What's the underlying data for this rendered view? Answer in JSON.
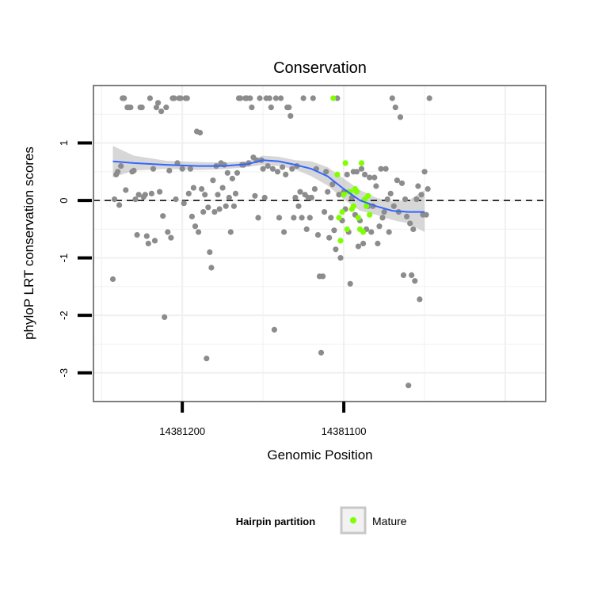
{
  "chart_data": {
    "type": "scatter",
    "title": "Conservation",
    "xlabel": "Genomic Position",
    "ylabel": "phyloP LRT conservation scores",
    "x_reversed": true,
    "xlim": [
      14381255,
      14380975
    ],
    "ylim": [
      -3.5,
      2.0
    ],
    "x_ticks": [
      14381200,
      14381100
    ],
    "x_tick_labels": [
      "14381200",
      "14381100"
    ],
    "y_ticks": [
      -3,
      -2,
      -1,
      0,
      1
    ],
    "y_tick_labels": [
      "-3",
      "-2",
      "-1",
      "0",
      "1"
    ],
    "reference_line": {
      "y": 0,
      "style": "dashed"
    },
    "grid": true,
    "legend": {
      "title": "Hairpin partition",
      "position": "bottom",
      "entries": [
        {
          "label": "Mature",
          "color": "#7fff00"
        }
      ]
    },
    "colors": {
      "points_gray": "#8c8c8c",
      "mature": "#7fff00",
      "smooth": "#3366ff",
      "ribbon": "#bdbdbd",
      "panel_border": "#7f7f7f",
      "grid": "#f0f0f0"
    },
    "series": [
      {
        "name": "",
        "color": "#8c8c8c",
        "points": [
          [
            14381243,
            -1.37
          ],
          [
            14381242,
            0.02
          ],
          [
            14381241,
            0.45
          ],
          [
            14381240,
            0.5
          ],
          [
            14381239,
            -0.08
          ],
          [
            14381238,
            0.6
          ],
          [
            14381237,
            1.78
          ],
          [
            14381236,
            1.78
          ],
          [
            14381235,
            0.18
          ],
          [
            14381234,
            1.62
          ],
          [
            14381233,
            1.62
          ],
          [
            14381232,
            1.62
          ],
          [
            14381231,
            0.5
          ],
          [
            14381230,
            0.52
          ],
          [
            14381229,
            0.02
          ],
          [
            14381228,
            -0.6
          ],
          [
            14381227,
            0.1
          ],
          [
            14381226,
            1.62
          ],
          [
            14381225,
            1.62
          ],
          [
            14381224,
            0.06
          ],
          [
            14381223,
            0.1
          ],
          [
            14381222,
            -0.62
          ],
          [
            14381221,
            -0.75
          ],
          [
            14381220,
            1.78
          ],
          [
            14381219,
            0.12
          ],
          [
            14381218,
            0.55
          ],
          [
            14381217,
            -0.7
          ],
          [
            14381216,
            1.62
          ],
          [
            14381215,
            1.7
          ],
          [
            14381214,
            0.15
          ],
          [
            14381213,
            1.55
          ],
          [
            14381212,
            -0.27
          ],
          [
            14381211,
            -2.03
          ],
          [
            14381210,
            1.62
          ],
          [
            14381209,
            -0.55
          ],
          [
            14381208,
            0.52
          ],
          [
            14381207,
            -0.65
          ],
          [
            14381206,
            1.78
          ],
          [
            14381205,
            1.78
          ],
          [
            14381204,
            0.02
          ],
          [
            14381203,
            0.65
          ],
          [
            14381202,
            1.78
          ],
          [
            14381201,
            1.78
          ],
          [
            14381200,
            0.55
          ],
          [
            14381199,
            -0.05
          ],
          [
            14381198,
            1.78
          ],
          [
            14381197,
            1.78
          ],
          [
            14381196,
            0.12
          ],
          [
            14381195,
            0.55
          ],
          [
            14381194,
            -0.28
          ],
          [
            14381193,
            0.22
          ],
          [
            14381192,
            -0.45
          ],
          [
            14381191,
            1.2
          ],
          [
            14381190,
            -0.55
          ],
          [
            14381189,
            1.18
          ],
          [
            14381188,
            0.2
          ],
          [
            14381187,
            -0.2
          ],
          [
            14381186,
            0.1
          ],
          [
            14381185,
            -2.75
          ],
          [
            14381184,
            -0.12
          ],
          [
            14381183,
            -0.9
          ],
          [
            14381182,
            -1.17
          ],
          [
            14381181,
            0.35
          ],
          [
            14381180,
            -0.2
          ],
          [
            14381179,
            0.6
          ],
          [
            14381178,
            0.1
          ],
          [
            14381177,
            -0.15
          ],
          [
            14381176,
            0.65
          ],
          [
            14381175,
            0.22
          ],
          [
            14381174,
            0.62
          ],
          [
            14381173,
            -0.1
          ],
          [
            14381172,
            0.48
          ],
          [
            14381171,
            0.05
          ],
          [
            14381170,
            -0.55
          ],
          [
            14381169,
            0.38
          ],
          [
            14381168,
            -0.1
          ],
          [
            14381167,
            0.12
          ],
          [
            14381166,
            0.48
          ],
          [
            14381165,
            1.78
          ],
          [
            14381164,
            1.78
          ],
          [
            14381163,
            0.62
          ],
          [
            14381162,
            0.62
          ],
          [
            14381161,
            1.78
          ],
          [
            14381160,
            1.78
          ],
          [
            14381159,
            0.65
          ],
          [
            14381158,
            1.78
          ],
          [
            14381157,
            1.62
          ],
          [
            14381156,
            0.75
          ],
          [
            14381155,
            0.08
          ],
          [
            14381154,
            0.7
          ],
          [
            14381153,
            -0.3
          ],
          [
            14381152,
            1.78
          ],
          [
            14381151,
            0.7
          ],
          [
            14381150,
            0.55
          ],
          [
            14381149,
            0.05
          ],
          [
            14381148,
            1.78
          ],
          [
            14381147,
            0.6
          ],
          [
            14381146,
            1.78
          ],
          [
            14381145,
            1.62
          ],
          [
            14381144,
            0.55
          ],
          [
            14381143,
            -2.25
          ],
          [
            14381142,
            1.78
          ],
          [
            14381141,
            0.5
          ],
          [
            14381140,
            -0.3
          ],
          [
            14381139,
            1.78
          ],
          [
            14381138,
            0.58
          ],
          [
            14381137,
            -0.55
          ],
          [
            14381136,
            0.45
          ],
          [
            14381135,
            1.62
          ],
          [
            14381134,
            1.62
          ],
          [
            14381133,
            1.47
          ],
          [
            14381132,
            0.55
          ],
          [
            14381131,
            -0.3
          ],
          [
            14381130,
            0.05
          ],
          [
            14381129,
            0.6
          ],
          [
            14381128,
            -0.1
          ],
          [
            14381127,
            0.15
          ],
          [
            14381126,
            -0.3
          ],
          [
            14381125,
            1.78
          ],
          [
            14381124,
            0.1
          ],
          [
            14381123,
            -0.5
          ],
          [
            14381122,
            0.05
          ],
          [
            14381121,
            -0.3
          ],
          [
            14381120,
            0.05
          ],
          [
            14381119,
            1.78
          ],
          [
            14381118,
            0.2
          ],
          [
            14381117,
            0.55
          ],
          [
            14381116,
            -0.6
          ],
          [
            14381115,
            -1.32
          ],
          [
            14381114,
            -2.65
          ],
          [
            14381113,
            -1.32
          ],
          [
            14381112,
            -0.2
          ],
          [
            14381111,
            0.5
          ],
          [
            14381110,
            0.15
          ],
          [
            14381109,
            -0.65
          ],
          [
            14381108,
            -0.3
          ],
          [
            14381107,
            0.28
          ],
          [
            14381106,
            -0.52
          ],
          [
            14381105,
            -0.85
          ],
          [
            14381104,
            1.78
          ],
          [
            14381103,
            0.1
          ],
          [
            14381102,
            -1.0
          ],
          [
            14381101,
            -0.35
          ],
          [
            14381100,
            0.15
          ],
          [
            14381099,
            -0.15
          ],
          [
            14381098,
            0.45
          ],
          [
            14381097,
            -0.55
          ],
          [
            14381096,
            -1.45
          ],
          [
            14381095,
            0.05
          ],
          [
            14381094,
            0.5
          ],
          [
            14381093,
            -0.25
          ],
          [
            14381092,
            0.5
          ],
          [
            14381091,
            -0.8
          ],
          [
            14381090,
            -0.35
          ],
          [
            14381089,
            0.55
          ],
          [
            14381088,
            -0.75
          ],
          [
            14381087,
            0.45
          ],
          [
            14381086,
            -0.5
          ],
          [
            14381085,
            -0.1
          ],
          [
            14381084,
            0.4
          ],
          [
            14381083,
            -0.55
          ],
          [
            14381082,
            -0.1
          ],
          [
            14381081,
            0.4
          ],
          [
            14381080,
            0.25
          ],
          [
            14381079,
            -0.75
          ],
          [
            14381078,
            -0.45
          ],
          [
            14381077,
            0.55
          ],
          [
            14381076,
            -0.3
          ],
          [
            14381075,
            -0.2
          ],
          [
            14381074,
            0.55
          ],
          [
            14381073,
            0.02
          ],
          [
            14381072,
            -0.55
          ],
          [
            14381071,
            0.12
          ],
          [
            14381070,
            1.78
          ],
          [
            14381069,
            -0.1
          ],
          [
            14381068,
            1.62
          ],
          [
            14381067,
            0.35
          ],
          [
            14381066,
            -0.2
          ],
          [
            14381065,
            1.45
          ],
          [
            14381064,
            0.3
          ],
          [
            14381063,
            -1.3
          ],
          [
            14381062,
            0.02
          ],
          [
            14381061,
            -0.28
          ],
          [
            14381060,
            -3.22
          ],
          [
            14381059,
            -0.4
          ],
          [
            14381058,
            -1.3
          ],
          [
            14381057,
            -0.5
          ],
          [
            14381056,
            -1.4
          ],
          [
            14381055,
            0.02
          ],
          [
            14381054,
            0.25
          ],
          [
            14381053,
            -1.72
          ],
          [
            14381052,
            0.1
          ],
          [
            14381051,
            -0.25
          ],
          [
            14381050,
            0.5
          ],
          [
            14381049,
            -0.25
          ],
          [
            14381048,
            0.2
          ],
          [
            14381047,
            1.78
          ]
        ]
      },
      {
        "name": "Mature",
        "color": "#7fff00",
        "points": [
          [
            14381106.5,
            1.78
          ],
          [
            14381104,
            0.45
          ],
          [
            14381103,
            -0.3
          ],
          [
            14381102,
            -0.7
          ],
          [
            14381101,
            -0.2
          ],
          [
            14381100,
            0.1
          ],
          [
            14381099,
            0.65
          ],
          [
            14381098,
            -0.5
          ],
          [
            14381097,
            0.15
          ],
          [
            14381096,
            0.15
          ],
          [
            14381095,
            -0.15
          ],
          [
            14381094,
            -0.1
          ],
          [
            14381093,
            0.2
          ],
          [
            14381092,
            0.15
          ],
          [
            14381091,
            -0.3
          ],
          [
            14381090,
            -0.5
          ],
          [
            14381089,
            0.65
          ],
          [
            14381088,
            -0.55
          ],
          [
            14381087,
            0.02
          ],
          [
            14381086,
            -0.1
          ],
          [
            14381085,
            0.08
          ],
          [
            14381084,
            -0.25
          ]
        ]
      }
    ],
    "smooth": {
      "x": [
        14381243,
        14381230,
        14381210,
        14381190,
        14381175,
        14381160,
        14381150,
        14381140,
        14381130,
        14381120,
        14381110,
        14381100,
        14381090,
        14381080,
        14381070,
        14381060,
        14381050
      ],
      "y": [
        0.68,
        0.65,
        0.62,
        0.6,
        0.6,
        0.63,
        0.7,
        0.68,
        0.62,
        0.55,
        0.42,
        0.2,
        0.0,
        -0.1,
        -0.18,
        -0.2,
        -0.2
      ],
      "ribbon_upper": [
        0.95,
        0.78,
        0.69,
        0.67,
        0.66,
        0.68,
        0.78,
        0.76,
        0.7,
        0.68,
        0.58,
        0.38,
        0.18,
        0.05,
        -0.02,
        0.0,
        0.18
      ],
      "ribbon_lower": [
        0.4,
        0.52,
        0.55,
        0.53,
        0.54,
        0.58,
        0.62,
        0.6,
        0.54,
        0.42,
        0.26,
        0.02,
        -0.18,
        -0.25,
        -0.34,
        -0.4,
        -0.55
      ]
    }
  }
}
